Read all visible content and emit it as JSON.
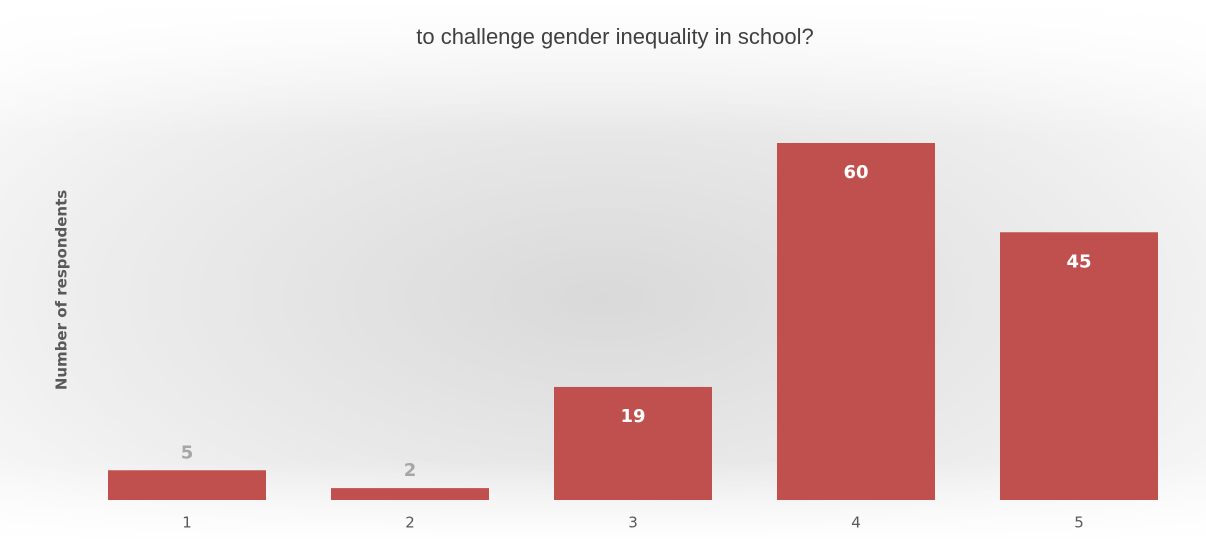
{
  "chart_data": {
    "type": "bar",
    "title": "to challenge gender inequality in school?",
    "y_label": "Number of respondents",
    "categories": [
      "1",
      "2",
      "3",
      "4",
      "5"
    ],
    "values": [
      5,
      2,
      19,
      60,
      45
    ],
    "color": "#c0504d"
  }
}
